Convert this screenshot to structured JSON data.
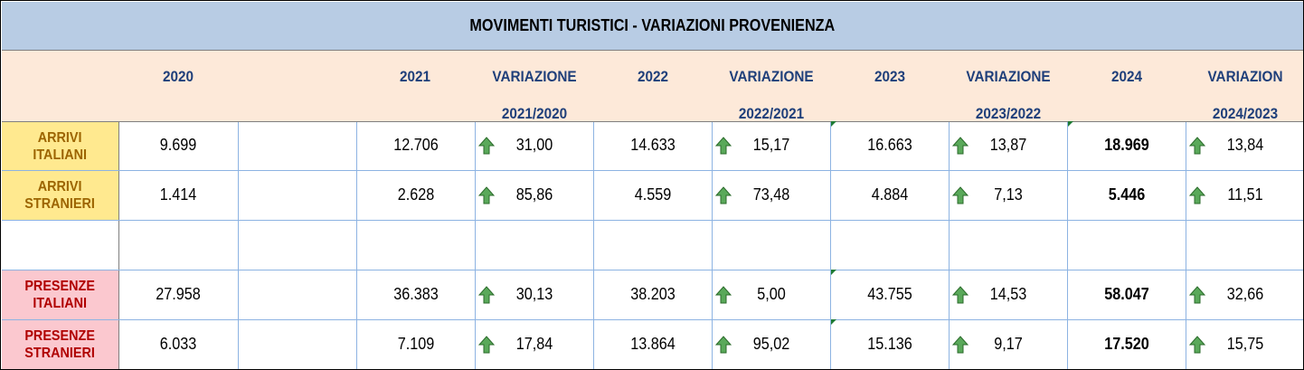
{
  "title": "MOVIMENTI TURISTICI - VARIAZIONI PROVENIENZA",
  "headers": {
    "y2020": "2020",
    "y2021": "2021",
    "var1_line1": "VARIAZIONE",
    "var1_line2": "2021/2020",
    "y2022": "2022",
    "var2_line1": "VARIAZIONE",
    "var2_line2": "2022/2021",
    "y2023": "2023",
    "var3_line1": "VARIAZIONE",
    "var3_line2": "2023/2022",
    "y2024": "2024",
    "var4_line1": "VARIAZION",
    "var4_line2": "2024/2023"
  },
  "rows": [
    {
      "label1": "ARRIVI",
      "label2": "ITALIANI",
      "v2020": "9.699",
      "v2021": "12.706",
      "var1": "31,00",
      "v2022": "14.633",
      "var2": "15,17",
      "v2023": "16.663",
      "var3": "13,87",
      "v2024": "18.969",
      "var4": "13,84"
    },
    {
      "label1": "ARRIVI",
      "label2": "STRANIERI",
      "v2020": "1.414",
      "v2021": "2.628",
      "var1": "85,86",
      "v2022": "4.559",
      "var2": "73,48",
      "v2023": "4.884",
      "var3": "7,13",
      "v2024": "5.446",
      "var4": "11,51"
    },
    {
      "label1": "PRESENZE",
      "label2": "ITALIANI",
      "v2020": "27.958",
      "v2021": "36.383",
      "var1": "30,13",
      "v2022": "38.203",
      "var2": "5,00",
      "v2023": "43.755",
      "var3": "14,53",
      "v2024": "58.047",
      "var4": "32,66"
    },
    {
      "label1": "PRESENZE",
      "label2": "STRANIERI",
      "v2020": "6.033",
      "v2021": "7.109",
      "var1": "17,84",
      "v2022": "13.864",
      "var2": "95,02",
      "v2023": "15.136",
      "var3": "9,17",
      "v2024": "17.520",
      "var4": "15,75"
    }
  ],
  "icons": {
    "variation": "up-arrow-icon"
  },
  "colors": {
    "title_bg": "#b8cce4",
    "header_bg": "#fde9d9",
    "header_text": "#1f3f7a",
    "arrivi_bg": "#ffe98f",
    "arrivi_text": "#9c6400",
    "presenze_bg": "#fbc8cf",
    "presenze_text": "#b00000",
    "arrow": "#5aa95a"
  }
}
